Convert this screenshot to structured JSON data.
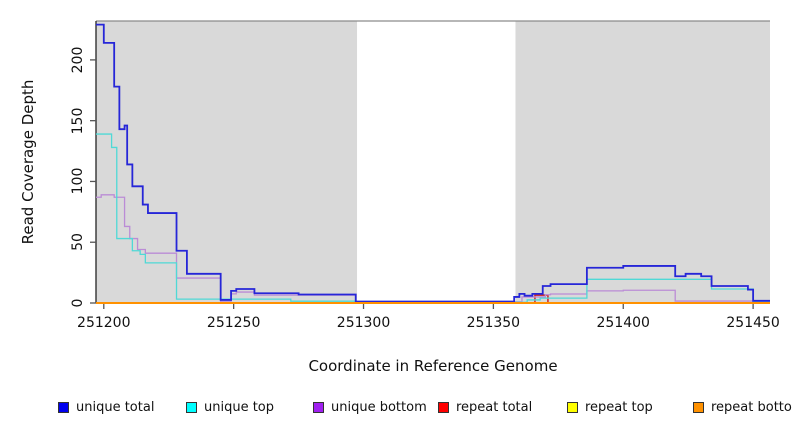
{
  "figure": {
    "x_axis_label": "Coordinate in Reference Genome",
    "y_axis_label": "Read Coverage Depth"
  },
  "chart_data": {
    "type": "line",
    "step": true,
    "title": "",
    "xlabel": "Coordinate in Reference Genome",
    "ylabel": "Read Coverage Depth",
    "xlim": [
      251197,
      251456.5
    ],
    "ylim": [
      0,
      232
    ],
    "x_ticks": [
      251200,
      251250,
      251300,
      251350,
      251400,
      251450
    ],
    "y_ticks": [
      0,
      50,
      100,
      150,
      200
    ],
    "grid": false,
    "legend_position": "bottom",
    "plot_background": "#ffffff",
    "shaded_regions": {
      "color": "#d9d9d9",
      "intervals": [
        [
          251197,
          251297.5
        ],
        [
          251358.5,
          251456.5
        ]
      ]
    },
    "series": [
      {
        "name": "unique total",
        "line_color": "#2626d8",
        "swatch_color": "#0000ee",
        "width": 1.8,
        "points": [
          [
            251197,
            229
          ],
          [
            251200,
            214
          ],
          [
            251204,
            178
          ],
          [
            251206,
            143
          ],
          [
            251208,
            146
          ],
          [
            251209,
            114
          ],
          [
            251211,
            96
          ],
          [
            251215,
            81
          ],
          [
            251217,
            74
          ],
          [
            251228,
            43
          ],
          [
            251232,
            24
          ],
          [
            251245,
            2.5
          ],
          [
            251249,
            10
          ],
          [
            251251,
            11.5
          ],
          [
            251258,
            8
          ],
          [
            251275,
            7
          ],
          [
            251297,
            1.2
          ],
          [
            251358,
            5
          ],
          [
            251360,
            7.5
          ],
          [
            251362,
            6
          ],
          [
            251365,
            7.5
          ],
          [
            251369,
            14
          ],
          [
            251372,
            15.5
          ],
          [
            251386,
            29
          ],
          [
            251400,
            30.5
          ],
          [
            251420,
            22
          ],
          [
            251424,
            24
          ],
          [
            251430,
            22
          ],
          [
            251434,
            14
          ],
          [
            251448,
            11
          ],
          [
            251450,
            1.8
          ],
          [
            251456,
            1.8
          ]
        ]
      },
      {
        "name": "unique top",
        "line_color": "#4fd9d6",
        "swatch_color": "#00ffff",
        "width": 1.3,
        "points": [
          [
            251197,
            139
          ],
          [
            251203,
            128
          ],
          [
            251205,
            53
          ],
          [
            251211,
            43
          ],
          [
            251214,
            40
          ],
          [
            251216,
            33
          ],
          [
            251228,
            3.2
          ],
          [
            251272,
            1.5
          ],
          [
            251297,
            0.6
          ],
          [
            251363,
            2.5
          ],
          [
            251368,
            4
          ],
          [
            251386,
            19.5
          ],
          [
            251434,
            11.5
          ],
          [
            251450,
            0.6
          ],
          [
            251456,
            0.6
          ]
        ]
      },
      {
        "name": "unique bottom",
        "line_color": "#bb8cd6",
        "swatch_color": "#a020f0",
        "width": 1.3,
        "points": [
          [
            251197,
            87
          ],
          [
            251199,
            89
          ],
          [
            251204,
            87
          ],
          [
            251208,
            63
          ],
          [
            251210,
            53
          ],
          [
            251213,
            44
          ],
          [
            251216,
            41
          ],
          [
            251228,
            20.5
          ],
          [
            251245,
            1
          ],
          [
            251249,
            7.5
          ],
          [
            251251,
            9
          ],
          [
            251258,
            6.5
          ],
          [
            251297,
            1
          ],
          [
            251361,
            5
          ],
          [
            251370,
            6.8
          ],
          [
            251372,
            7.4
          ],
          [
            251386,
            10
          ],
          [
            251400,
            10.5
          ],
          [
            251420,
            1.6
          ],
          [
            251456,
            1.6
          ]
        ]
      },
      {
        "name": "repeat total",
        "line_color": "#cc2222",
        "swatch_color": "#ff0000",
        "width": 1.5,
        "points": [
          [
            251197,
            0
          ],
          [
            251366,
            6.5
          ],
          [
            251371,
            0
          ],
          [
            251456,
            0
          ]
        ]
      },
      {
        "name": "repeat top",
        "line_color": "#eded00",
        "swatch_color": "#ffff00",
        "width": 1.5,
        "points": [
          [
            251197,
            0
          ],
          [
            251456,
            0
          ]
        ]
      },
      {
        "name": "repeat bottom",
        "line_color": "#ff9100",
        "swatch_color": "#ff9100",
        "width": 2,
        "points": [
          [
            251197,
            0
          ],
          [
            251456,
            0
          ]
        ]
      }
    ]
  }
}
